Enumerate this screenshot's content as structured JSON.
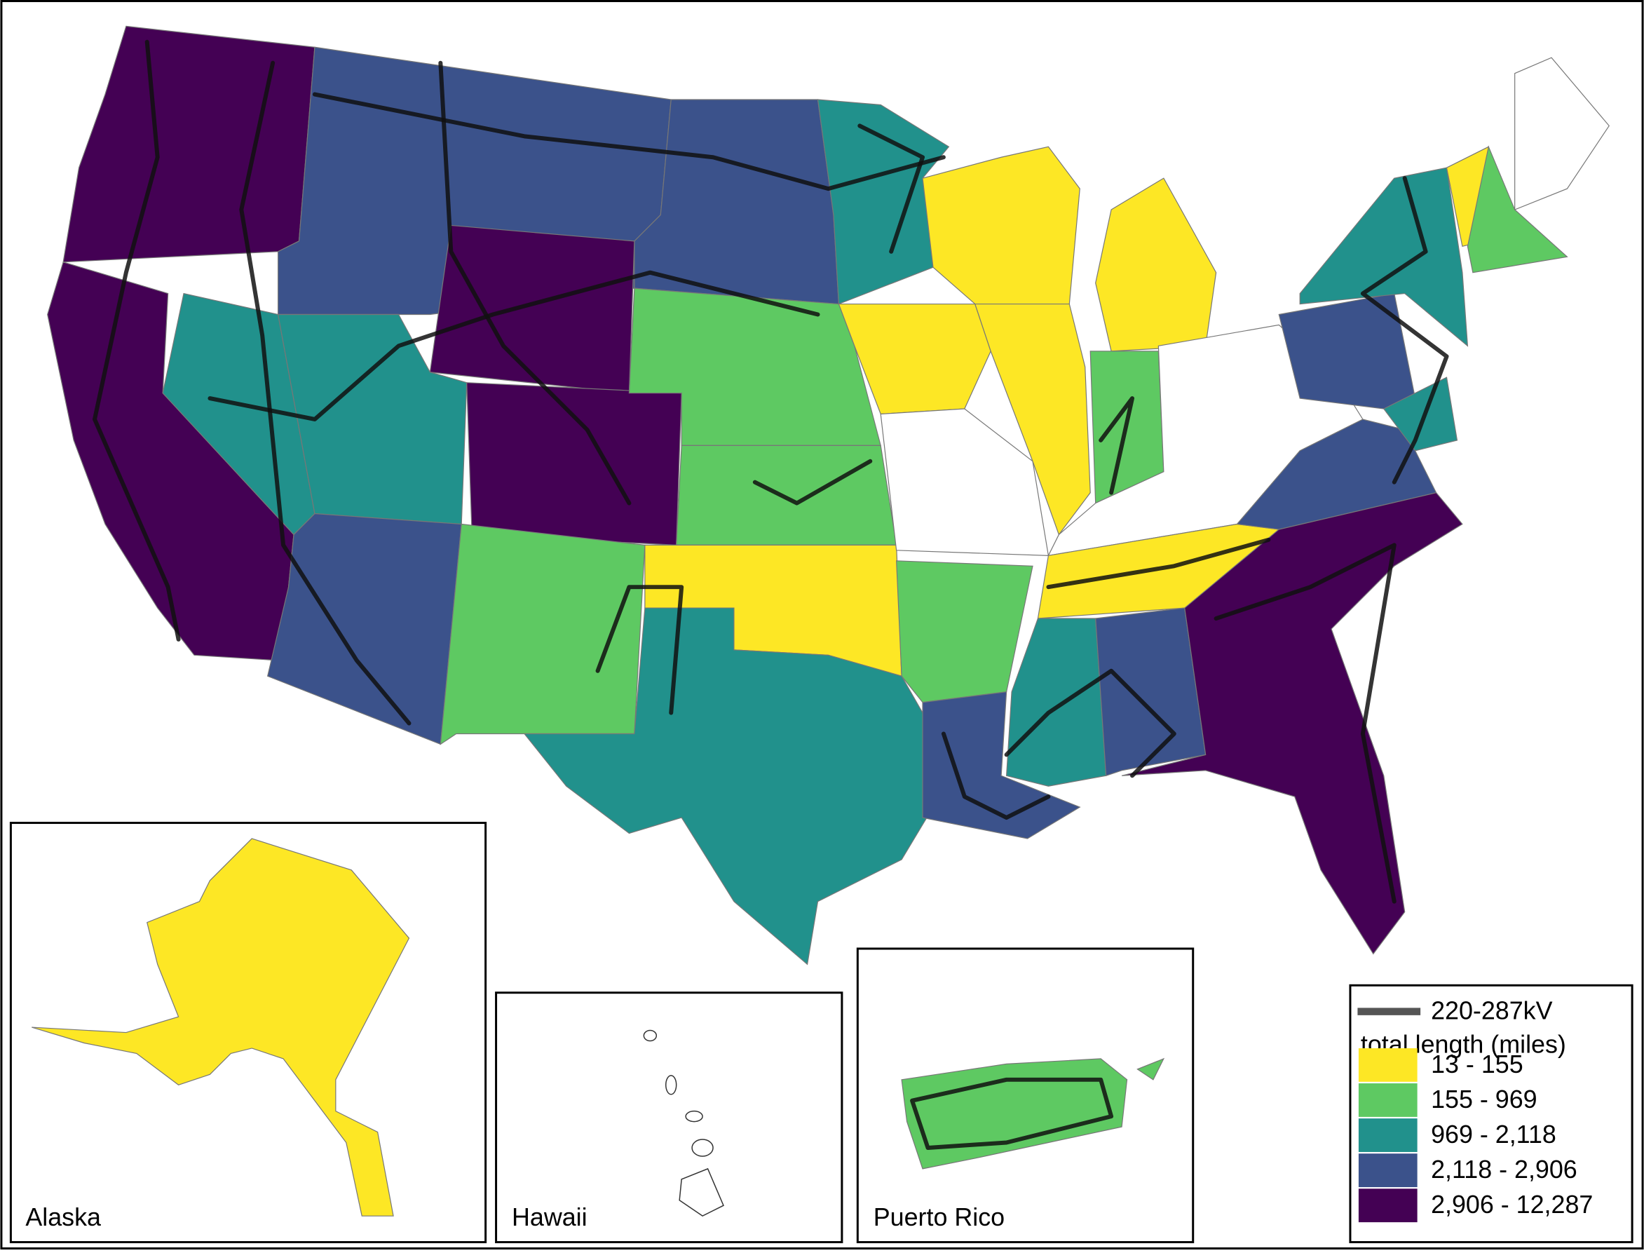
{
  "legend": {
    "line_label": "220-287kV",
    "line_color": "#555555",
    "title": "total length (miles)",
    "classes": [
      {
        "label": "13 - 155",
        "color": "#fde725"
      },
      {
        "label": "155 - 969",
        "color": "#5ec962"
      },
      {
        "label": "969 - 2,118",
        "color": "#21918c"
      },
      {
        "label": "2,118 - 2,906",
        "color": "#3b528b"
      },
      {
        "label": "2,906 - 12,287",
        "color": "#440154"
      }
    ]
  },
  "insets": [
    "Alaska",
    "Hawaii",
    "Puerto Rico"
  ]
}
